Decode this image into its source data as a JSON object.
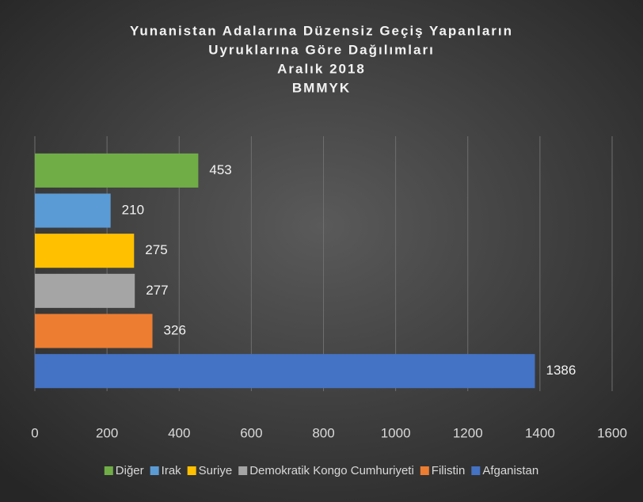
{
  "chart_data": {
    "type": "hbar",
    "title": [
      "Yunanistan Adalarına Düzensiz Geçiş Yapanların",
      "Uyruklarına Göre Dağılımları",
      "Aralık 2018",
      "BMMYK"
    ],
    "categories": [
      "Diğer",
      "Irak",
      "Suriye",
      "Demokratik Kongo Cumhuriyeti",
      "Filistin",
      "Afganistan"
    ],
    "values": [
      453,
      210,
      275,
      277,
      326,
      1386
    ],
    "colors": [
      "#70ad47",
      "#5b9bd5",
      "#ffc000",
      "#a5a5a5",
      "#ed7d31",
      "#4472c4"
    ],
    "xlim": [
      0,
      1600
    ],
    "xticks": [
      0,
      200,
      400,
      600,
      800,
      1000,
      1200,
      1400,
      1600
    ],
    "grid": true,
    "legend": "bottom"
  }
}
